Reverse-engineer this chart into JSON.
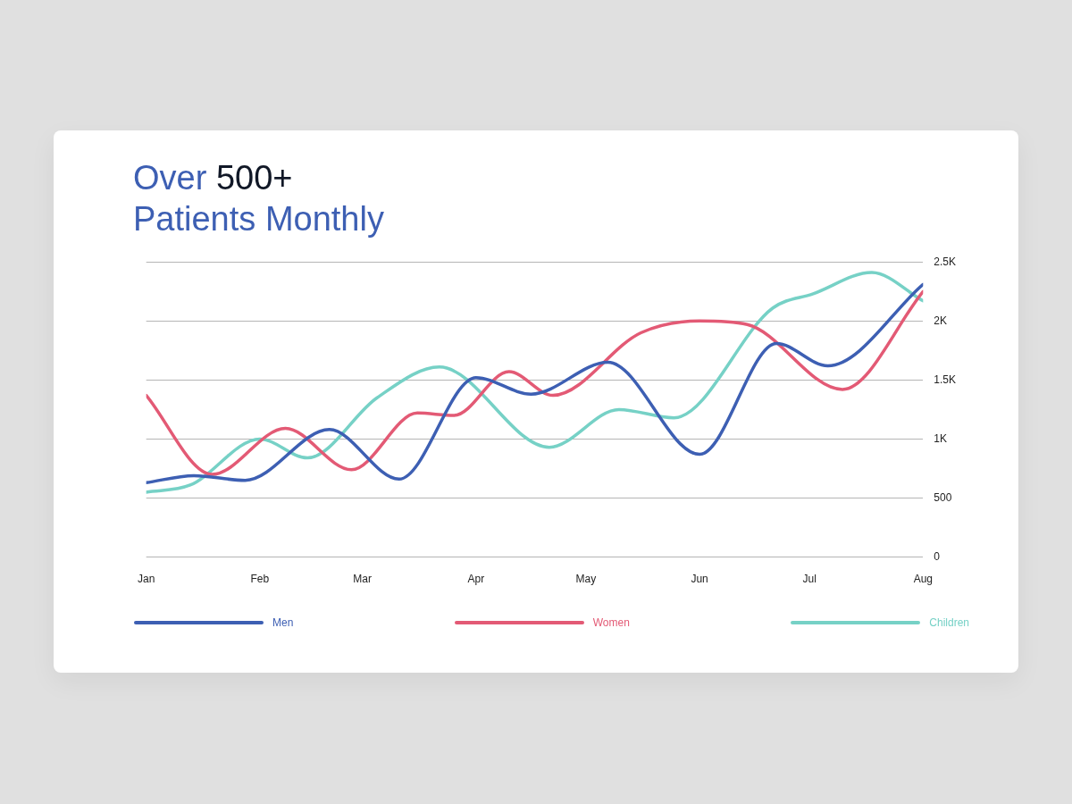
{
  "chart_data": {
    "type": "line",
    "title": "Over 500+ Patients Monthly",
    "xlim": [
      "--01-01",
      "--08-01"
    ],
    "xticks": [
      {
        "value": "--01-01",
        "label": "Jan"
      },
      {
        "value": "--02-01",
        "label": "Feb"
      },
      {
        "value": "--03-01",
        "label": "Mar"
      },
      {
        "value": "--04-01",
        "label": "Apr"
      },
      {
        "value": "--05-01",
        "label": "May"
      },
      {
        "value": "--06-01",
        "label": "Jun"
      },
      {
        "value": "--07-01",
        "label": "Jul"
      },
      {
        "value": "--08-01",
        "label": "Aug"
      }
    ],
    "ylim": [
      0,
      2500
    ],
    "yticks": [
      0,
      500,
      {
        "value": 1000,
        "label": "1K"
      },
      {
        "value": 1500,
        "label": "1.5K"
      },
      {
        "value": 2000,
        "label": "2K"
      },
      {
        "value": 2500,
        "label": "2.5K"
      }
    ],
    "grid": "y",
    "legend": "bottom",
    "marker": "none",
    "line_style": "solid",
    "series": [
      {
        "name": "Men",
        "color": "#3d5fb3",
        "x": [
          "--01-01",
          "--01-14",
          "--01-28",
          "--02-20",
          "--03-11",
          "--04-01",
          "--04-16",
          "--05-07",
          "--06-01",
          "--06-22",
          "--07-06",
          "--08-01"
        ],
        "values": [
          630,
          690,
          650,
          1080,
          660,
          1520,
          1380,
          1650,
          870,
          1810,
          1620,
          2310
        ]
      },
      {
        "name": "Women",
        "color": "#e35a75",
        "x": [
          "--01-01",
          "--01-19",
          "--02-08",
          "--02-26",
          "--03-16",
          "--03-26",
          "--04-10",
          "--04-22",
          "--05-16",
          "--06-01",
          "--06-14",
          "--07-10",
          "--08-01"
        ],
        "values": [
          1370,
          700,
          1090,
          740,
          1220,
          1200,
          1570,
          1370,
          1900,
          2000,
          1970,
          1420,
          2250
        ]
      },
      {
        "name": "Children",
        "color": "#76d1c6",
        "x": [
          "--01-01",
          "--01-13",
          "--02-01",
          "--02-14",
          "--03-05",
          "--03-22",
          "--04-21",
          "--05-10",
          "--05-25",
          "--06-21",
          "--07-02",
          "--07-18",
          "--08-01"
        ],
        "values": [
          550,
          610,
          1000,
          840,
          1350,
          1610,
          930,
          1250,
          1180,
          2110,
          2230,
          2410,
          2170
        ]
      }
    ]
  }
}
